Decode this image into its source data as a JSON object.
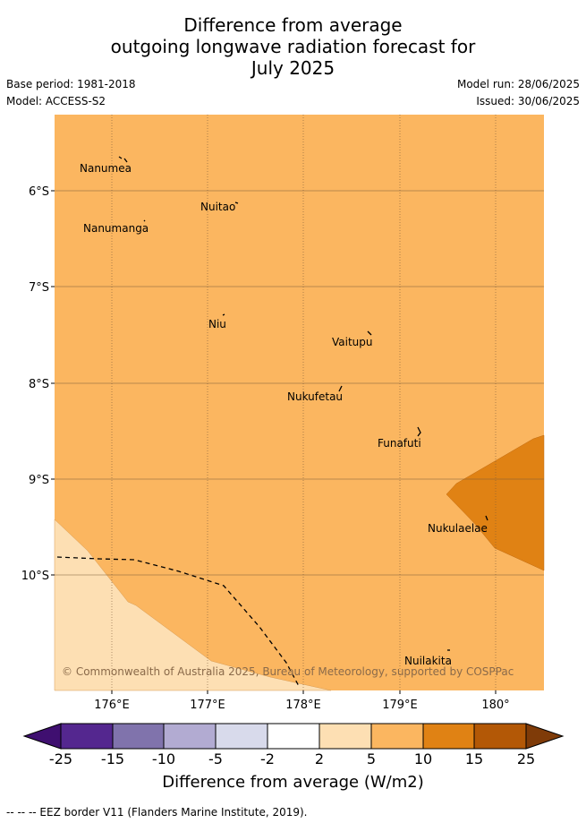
{
  "title_lines": [
    "Difference from average",
    "outgoing longwave radiation forecast for",
    "July 2025"
  ],
  "meta": {
    "base_period": "Base period: 1981-2018",
    "model": "Model: ACCESS-S2",
    "model_run": "Model run: 28/06/2025",
    "issued": "Issued: 30/06/2025"
  },
  "map": {
    "x_ticks": [
      "176°E",
      "177°E",
      "178°E",
      "179°E",
      "180°"
    ],
    "y_ticks": [
      "6°S",
      "7°S",
      "8°S",
      "9°S",
      "10°S"
    ],
    "islands": [
      "Nanumea",
      "Nuitao",
      "Nanumanga",
      "Niu",
      "Vaitupu",
      "Nukufetau",
      "Funafuti",
      "Nukulaelae",
      "Nuilakita"
    ],
    "copyright": "© Commonwealth of Australia 2025, Bureau of Meteorology, supported by COSPPac",
    "colors": {
      "background": "#fbb660",
      "high": "#e08214",
      "low": "#fddfb3"
    }
  },
  "colorbar": {
    "labels": [
      "-25",
      "-15",
      "-10",
      "-5",
      "-2",
      "2",
      "5",
      "10",
      "15",
      "25"
    ],
    "colors": [
      "#3f0f70",
      "#54278f",
      "#8073ac",
      "#b2abd2",
      "#d8daeb",
      "#ffffff",
      "#fddfb3",
      "#fbb660",
      "#e08214",
      "#b35806",
      "#7f3b08"
    ],
    "title": "Difference from average (W/m2)"
  },
  "footer": "--  --  -- EEZ border V11 (Flanders Marine Institute, 2019)."
}
